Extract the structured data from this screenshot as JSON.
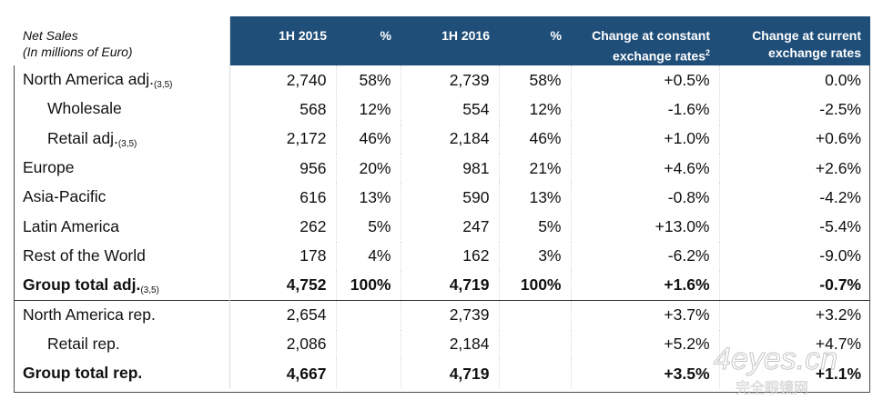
{
  "header": {
    "label_line1": "Net Sales",
    "label_line2": "(In millions of Euro)",
    "col_1h2015": "1H 2015",
    "col_pct1": "%",
    "col_1h2016": "1H 2016",
    "col_pct2": "%",
    "col_const_line1": "Change at constant",
    "col_const_line2": "exchange rates",
    "col_const_sup": "2",
    "col_curr_line1": "Change at current",
    "col_curr_line2": "exchange rates"
  },
  "rows": [
    {
      "label": "North America adj.",
      "sub": "(3,5)",
      "v2015": "2,740",
      "p2015": "58%",
      "v2016": "2,739",
      "p2016": "58%",
      "const": "+0.5%",
      "curr": "0.0%"
    },
    {
      "label": "Wholesale",
      "sub": "",
      "v2015": "568",
      "p2015": "12%",
      "v2016": "554",
      "p2016": "12%",
      "const": "-1.6%",
      "curr": "-2.5%"
    },
    {
      "label": "Retail adj.",
      "sub": "(3,5)",
      "v2015": "2,172",
      "p2015": "46%",
      "v2016": "2,184",
      "p2016": "46%",
      "const": "+1.0%",
      "curr": "+0.6%"
    },
    {
      "label": "Europe",
      "sub": "",
      "v2015": "956",
      "p2015": "20%",
      "v2016": "981",
      "p2016": "21%",
      "const": "+4.6%",
      "curr": "+2.6%"
    },
    {
      "label": "Asia-Pacific",
      "sub": "",
      "v2015": "616",
      "p2015": "13%",
      "v2016": "590",
      "p2016": "13%",
      "const": "-0.8%",
      "curr": "-4.2%"
    },
    {
      "label": "Latin America",
      "sub": "",
      "v2015": "262",
      "p2015": "5%",
      "v2016": "247",
      "p2016": "5%",
      "const": "+13.0%",
      "curr": "-5.4%"
    },
    {
      "label": "Rest of the World",
      "sub": "",
      "v2015": "178",
      "p2015": "4%",
      "v2016": "162",
      "p2016": "3%",
      "const": "-6.2%",
      "curr": "-9.0%"
    },
    {
      "label": "Group total adj.",
      "sub": "(3,5)",
      "v2015": "4,752",
      "p2015": "100%",
      "v2016": "4,719",
      "p2016": "100%",
      "const": "+1.6%",
      "curr": "-0.7%"
    },
    {
      "label": "North America rep.",
      "sub": "",
      "v2015": "2,654",
      "p2015": "",
      "v2016": "2,739",
      "p2016": "",
      "const": "+3.7%",
      "curr": "+3.2%"
    },
    {
      "label": "Retail rep.",
      "sub": "",
      "v2015": "2,086",
      "p2015": "",
      "v2016": "2,184",
      "p2016": "",
      "const": "+5.2%",
      "curr": "+4.7%"
    },
    {
      "label": "Group total rep.",
      "sub": "",
      "v2015": "4,667",
      "p2015": "",
      "v2016": "4,719",
      "p2016": "",
      "const": "+3.5%",
      "curr": "+1.1%"
    }
  ],
  "watermark": {
    "text": "4eyes.cn",
    "subtext": "完全眼镜网"
  },
  "colors": {
    "header_bg": "#1f4e79",
    "header_text": "#ffffff"
  }
}
